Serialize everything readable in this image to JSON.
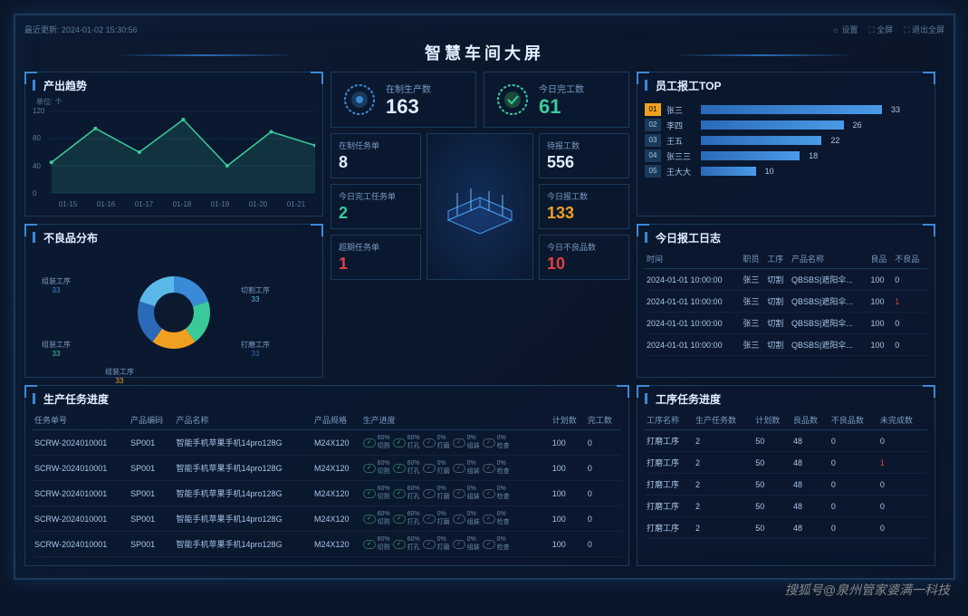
{
  "topbar": {
    "update_label": "最近更新:",
    "update_time": "2024-01-02 15:30:56",
    "settings": "☼ 设置",
    "fullscreen": "⛶ 全屏",
    "exit_fullscreen": "⛶ 退出全屏"
  },
  "title": "智慧车间大屏",
  "trend": {
    "title": "产出趋势",
    "unit": "单位: 个",
    "y_ticks": [
      120,
      80,
      40,
      0
    ],
    "x_labels": [
      "01-15",
      "01-16",
      "01-17",
      "01-18",
      "01-19",
      "01-20",
      "01-21"
    ],
    "values": [
      45,
      95,
      60,
      108,
      40,
      90,
      70
    ],
    "line_color": "#3aca9a",
    "fill_color": "rgba(58,202,154,0.15)"
  },
  "kpi": {
    "wip": {
      "label": "在制生产数",
      "value": "163",
      "color": "#e0f0ff"
    },
    "done": {
      "label": "今日完工数",
      "value": "61",
      "color": "#3aca9a"
    }
  },
  "stats": {
    "left": [
      {
        "label": "在制任务单",
        "value": "8",
        "color": "#e0f0ff"
      },
      {
        "label": "今日完工任务单",
        "value": "2",
        "color": "#3aca9a"
      },
      {
        "label": "超期任务单",
        "value": "1",
        "color": "#e04040"
      }
    ],
    "right": [
      {
        "label": "待报工数",
        "value": "556",
        "color": "#e0f0ff"
      },
      {
        "label": "今日报工数",
        "value": "133",
        "color": "#f0a020"
      },
      {
        "label": "今日不良品数",
        "value": "10",
        "color": "#e04040"
      }
    ]
  },
  "defect": {
    "title": "不良品分布",
    "slices": [
      {
        "label": "组装工序",
        "value": 33,
        "color": "#3a8ad8"
      },
      {
        "label": "组装工序",
        "value": 33,
        "color": "#3aca9a"
      },
      {
        "label": "组装工序",
        "value": 33,
        "color": "#f0a020"
      },
      {
        "label": "打磨工序",
        "value": 33,
        "color": "#2a6ab8"
      },
      {
        "label": "切割工序",
        "value": 33,
        "color": "#5ab8e8"
      }
    ]
  },
  "top_workers": {
    "title": "员工报工TOP",
    "rows": [
      {
        "rank": "01",
        "name": "张三",
        "value": 33,
        "top": true
      },
      {
        "rank": "02",
        "name": "李四",
        "value": 26
      },
      {
        "rank": "03",
        "name": "王五",
        "value": 22
      },
      {
        "rank": "04",
        "name": "张三三",
        "value": 18
      },
      {
        "rank": "05",
        "name": "王大大",
        "value": 10
      }
    ],
    "max": 33
  },
  "log": {
    "title": "今日报工日志",
    "cols": [
      "时间",
      "职员",
      "工序",
      "产品名称",
      "良品",
      "不良品"
    ],
    "rows": [
      [
        "2024-01-01 10:00:00",
        "张三",
        "切割",
        "QBSBS|遮阳伞...",
        "100",
        "0"
      ],
      [
        "2024-01-01 10:00:00",
        "张三",
        "切割",
        "QBSBS|遮阳伞...",
        "100",
        "1"
      ],
      [
        "2024-01-01 10:00:00",
        "张三",
        "切割",
        "QBSBS|遮阳伞...",
        "100",
        "0"
      ],
      [
        "2024-01-01 10:00:00",
        "张三",
        "切割",
        "QBSBS|遮阳伞...",
        "100",
        "0"
      ]
    ]
  },
  "prod_tasks": {
    "title": "生产任务进度",
    "cols": [
      "任务单号",
      "产品编码",
      "产品名称",
      "产品规格",
      "生产进度",
      "计划数",
      "完工数"
    ],
    "progress_steps": [
      {
        "pct": "60%",
        "name": "切割",
        "on": true
      },
      {
        "pct": "60%",
        "name": "打孔",
        "on": true
      },
      {
        "pct": "0%",
        "name": "打磨",
        "on": false
      },
      {
        "pct": "0%",
        "name": "组装",
        "on": false
      },
      {
        "pct": "0%",
        "name": "检查",
        "on": false
      }
    ],
    "rows": [
      [
        "SCRW-2024010001",
        "SP001",
        "智能手机苹果手机14pro128G",
        "M24X120",
        "",
        "100",
        "0"
      ],
      [
        "SCRW-2024010001",
        "SP001",
        "智能手机苹果手机14pro128G",
        "M24X120",
        "",
        "100",
        "0"
      ],
      [
        "SCRW-2024010001",
        "SP001",
        "智能手机苹果手机14pro128G",
        "M24X120",
        "",
        "100",
        "0"
      ],
      [
        "SCRW-2024010001",
        "SP001",
        "智能手机苹果手机14pro128G",
        "M24X120",
        "",
        "100",
        "0"
      ],
      [
        "SCRW-2024010001",
        "SP001",
        "智能手机苹果手机14pro128G",
        "M24X120",
        "",
        "100",
        "0"
      ]
    ]
  },
  "proc_tasks": {
    "title": "工序任务进度",
    "cols": [
      "工序名称",
      "生产任务数",
      "计划数",
      "良品数",
      "不良品数",
      "未完成数"
    ],
    "rows": [
      [
        "打磨工序",
        "2",
        "50",
        "48",
        "0",
        "0"
      ],
      [
        "打磨工序",
        "2",
        "50",
        "48",
        "0",
        "1"
      ],
      [
        "打磨工序",
        "2",
        "50",
        "48",
        "0",
        "0"
      ],
      [
        "打磨工序",
        "2",
        "50",
        "48",
        "0",
        "0"
      ],
      [
        "打磨工序",
        "2",
        "50",
        "48",
        "0",
        "0"
      ]
    ]
  },
  "watermark": "搜狐号@泉州管家婆满一科技"
}
